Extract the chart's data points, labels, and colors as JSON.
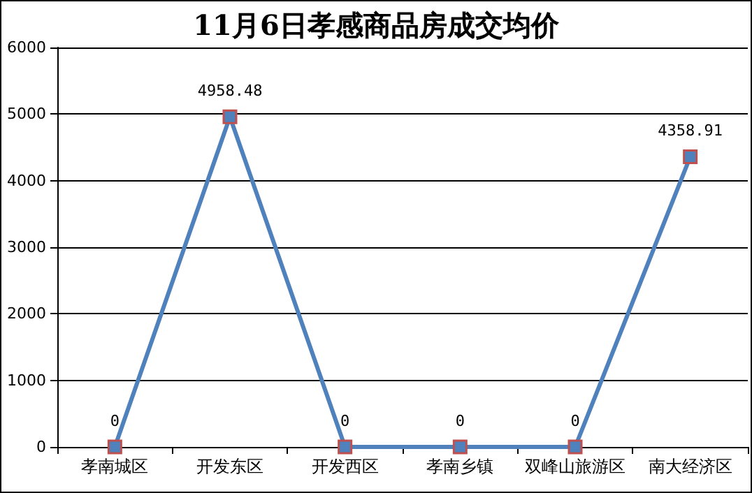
{
  "chart_data": {
    "type": "line",
    "title": "11月6日孝感商品房成交均价",
    "categories": [
      "孝南城区",
      "开发东区",
      "开发西区",
      "孝南乡镇",
      "双峰山旅游区",
      "南大经济区"
    ],
    "series": [
      {
        "color": "#4f81bd",
        "values": [
          0,
          4958.48,
          0,
          0,
          0,
          4358.91
        ]
      }
    ],
    "ylim": [
      0,
      6000
    ],
    "yticks": [
      0,
      1000,
      2000,
      3000,
      4000,
      5000,
      6000
    ],
    "grid": "y",
    "marker": "square",
    "line_style": "solid",
    "data_labels": true
  }
}
